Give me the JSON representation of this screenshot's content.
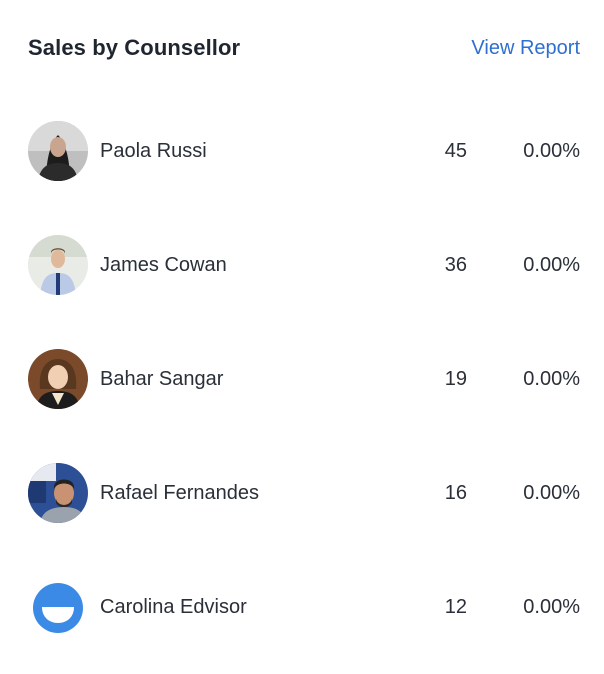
{
  "widget": {
    "title": "Sales by Counsellor",
    "view_report_label": "View Report",
    "accent_color": "#2f6fd1"
  },
  "counsellors": [
    {
      "name": "Paola Russi",
      "count": "45",
      "percent": "0.00%",
      "avatar": "photo-avatar"
    },
    {
      "name": "James Cowan",
      "count": "36",
      "percent": "0.00%",
      "avatar": "photo-avatar"
    },
    {
      "name": "Bahar Sangar",
      "count": "19",
      "percent": "0.00%",
      "avatar": "photo-avatar"
    },
    {
      "name": "Rafael Fernandes",
      "count": "16",
      "percent": "0.00%",
      "avatar": "photo-avatar"
    },
    {
      "name": "Carolina Edvisor",
      "count": "12",
      "percent": "0.00%",
      "avatar": "default-smile-avatar-icon"
    }
  ]
}
